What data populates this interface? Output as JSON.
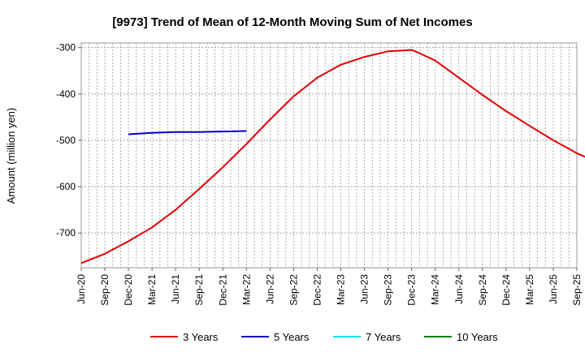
{
  "chart_data": {
    "type": "line",
    "title": "[9973]  Trend of Mean of 12-Month Moving Sum of Net Incomes",
    "xlabel": "",
    "ylabel": "Amount (million yen)",
    "x_ticks": [
      "Jun-20",
      "Sep-20",
      "Dec-20",
      "Mar-21",
      "Jun-21",
      "Sep-21",
      "Dec-21",
      "Mar-22",
      "Jun-22",
      "Sep-22",
      "Dec-22",
      "Mar-23",
      "Jun-23",
      "Sep-23",
      "Dec-23",
      "Mar-24",
      "Jun-24",
      "Sep-24",
      "Dec-24",
      "Mar-25",
      "Jun-25",
      "Sep-25"
    ],
    "y_ticks": [
      -300,
      -400,
      -500,
      -600,
      -700
    ],
    "ylim": [
      -775,
      -290
    ],
    "xlim": [
      "2020-06",
      "2025-09"
    ],
    "grid": true,
    "legend_position": "bottom",
    "series": [
      {
        "name": "3 Years",
        "color": "#e00000",
        "points": [
          [
            "2020-06",
            -765
          ],
          [
            "2020-09",
            -745
          ],
          [
            "2020-12",
            -718
          ],
          [
            "2021-03",
            -688
          ],
          [
            "2021-06",
            -650
          ],
          [
            "2021-09",
            -605
          ],
          [
            "2021-12",
            -558
          ],
          [
            "2022-03",
            -508
          ],
          [
            "2022-06",
            -455
          ],
          [
            "2022-09",
            -405
          ],
          [
            "2022-12",
            -365
          ],
          [
            "2023-03",
            -337
          ],
          [
            "2023-06",
            -320
          ],
          [
            "2023-09",
            -308
          ],
          [
            "2023-12",
            -305
          ],
          [
            "2024-01",
            -312
          ],
          [
            "2024-03",
            -328
          ],
          [
            "2024-06",
            -365
          ],
          [
            "2024-09",
            -402
          ],
          [
            "2024-12",
            -437
          ],
          [
            "2025-03",
            -469
          ],
          [
            "2025-06",
            -500
          ],
          [
            "2025-09",
            -528
          ],
          [
            "2025-12",
            -550
          ]
        ]
      },
      {
        "name": "5 Years",
        "color": "#0000cc",
        "points": [
          [
            "2020-12",
            -487
          ],
          [
            "2021-03",
            -484
          ],
          [
            "2021-06",
            -482
          ],
          [
            "2021-09",
            -482
          ],
          [
            "2021-12",
            -481
          ],
          [
            "2022-03",
            -480
          ]
        ]
      },
      {
        "name": "7 Years",
        "color": "#00e5e5",
        "points": []
      },
      {
        "name": "10 Years",
        "color": "#008000",
        "points": []
      }
    ]
  }
}
